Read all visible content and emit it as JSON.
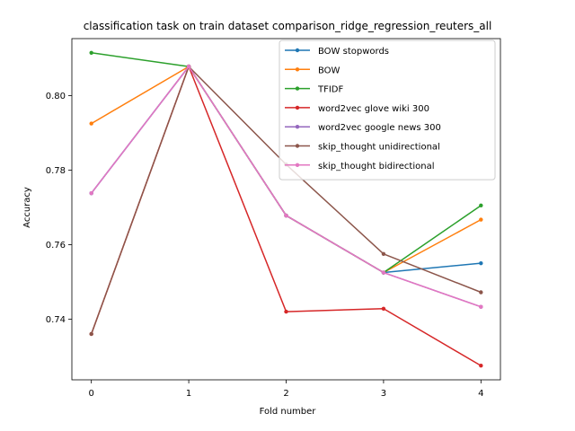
{
  "chart_data": {
    "type": "line",
    "title": "classification task on train dataset comparison_ridge_regression_reuters_all",
    "xlabel": "Fold number",
    "ylabel": "Accuracy",
    "x": [
      0,
      1,
      2,
      3,
      4
    ],
    "xticks": [
      "0",
      "1",
      "2",
      "3",
      "4"
    ],
    "yticks": [
      "0.74",
      "0.76",
      "0.78",
      "0.80"
    ],
    "xlim": [
      -0.2,
      4.2
    ],
    "ylim": [
      0.7237,
      0.8153
    ],
    "grid": false,
    "legend_position": "top-right",
    "series": [
      {
        "name": "BOW stopwords",
        "color": "#1f77b4",
        "values": [
          0.7738,
          0.8078,
          0.7678,
          0.7525,
          0.755
        ]
      },
      {
        "name": "BOW",
        "color": "#ff7f0e",
        "values": [
          0.7925,
          0.8078,
          0.7678,
          0.7525,
          0.7667
        ]
      },
      {
        "name": "TFIDF",
        "color": "#2ca02c",
        "values": [
          0.8115,
          0.8078,
          0.7678,
          0.7525,
          0.7705
        ]
      },
      {
        "name": "word2vec glove wiki 300",
        "color": "#d62728",
        "values": [
          0.736,
          0.8078,
          0.742,
          0.7428,
          0.7275
        ]
      },
      {
        "name": "word2vec google news 300",
        "color": "#9467bd",
        "values": [
          0.7738,
          0.8078,
          0.7678,
          0.7525,
          0.7433
        ]
      },
      {
        "name": "skip_thought unidirectional",
        "color": "#8c564b",
        "values": [
          0.736,
          0.8078,
          0.7815,
          0.7575,
          0.7472
        ]
      },
      {
        "name": "skip_thought bidirectional",
        "color": "#e377c2",
        "values": [
          0.7738,
          0.8078,
          0.7678,
          0.7525,
          0.7433
        ]
      }
    ]
  }
}
